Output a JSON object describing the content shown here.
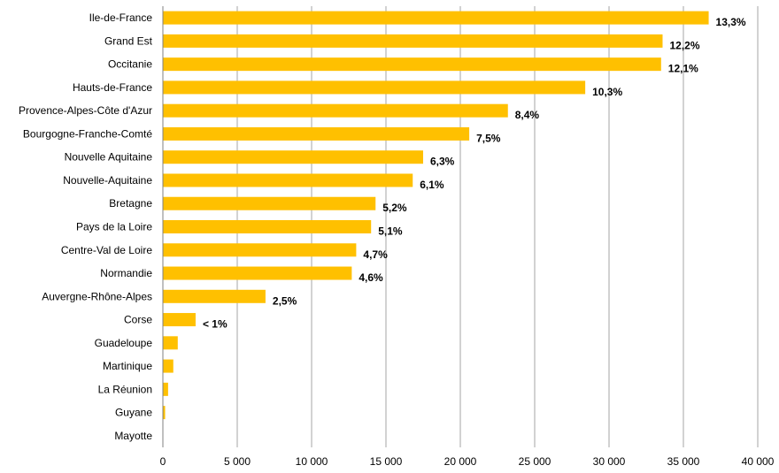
{
  "chart_data": {
    "type": "bar",
    "orientation": "horizontal",
    "categories": [
      "Ile-de-France",
      "Grand Est",
      "Occitanie",
      "Hauts-de-France",
      "Provence-Alpes-Côte d'Azur",
      "Bourgogne-Franche-Comté",
      "Nouvelle Aquitaine",
      "Nouvelle-Aquitaine",
      "Bretagne",
      "Pays de la Loire",
      "Centre-Val de Loire",
      "Normandie",
      "Auvergne-Rhône-Alpes",
      "Corse",
      "Guadeloupe",
      "Martinique",
      "La Réunion",
      "Guyane",
      "Mayotte"
    ],
    "values": [
      36700,
      33600,
      33500,
      28400,
      23200,
      20600,
      17500,
      16800,
      14300,
      14000,
      13000,
      12700,
      6900,
      2200,
      1000,
      700,
      350,
      150,
      0
    ],
    "data_labels": [
      "13,3%",
      "12,2%",
      "12,1%",
      "10,3%",
      "8,4%",
      "7,5%",
      "6,3%",
      "6,1%",
      "5,2%",
      "5,1%",
      "4,7%",
      "4,6%",
      "2,5%",
      "< 1%",
      "",
      "",
      "",
      "",
      ""
    ],
    "xlim": [
      0,
      40000
    ],
    "x_ticks": [
      0,
      5000,
      10000,
      15000,
      20000,
      25000,
      30000,
      35000,
      40000
    ],
    "x_tick_labels": [
      "0",
      "5 000",
      "10 000",
      "15 000",
      "20 000",
      "25 000",
      "30 000",
      "35 000",
      "40 000"
    ],
    "grid": true,
    "bar_color": "#FFC000",
    "grid_color": "#A6A6A6",
    "title": "",
    "xlabel": "",
    "ylabel": ""
  }
}
